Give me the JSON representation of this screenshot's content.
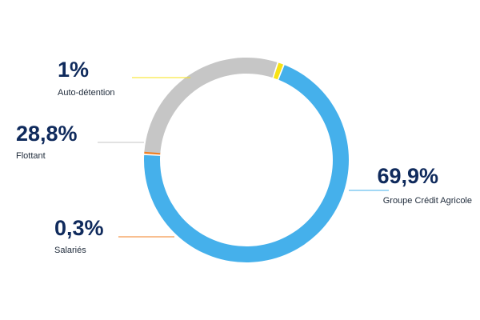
{
  "chart_data": {
    "type": "pie",
    "donut": true,
    "title": "",
    "slices": [
      {
        "label": "Groupe Crédit Agricole",
        "value": 69.9,
        "value_label": "69,9%",
        "color": "#45b0eb"
      },
      {
        "label": "Salariés",
        "value": 0.3,
        "value_label": "0,3%",
        "color": "#f07f22"
      },
      {
        "label": "Flottant",
        "value": 28.8,
        "value_label": "28,8%",
        "color": "#c6c6c6"
      },
      {
        "label": "Auto-détention",
        "value": 1,
        "value_label": "1%",
        "color": "#f7e315"
      }
    ]
  },
  "colors": {
    "value_text": "#0f2a5c",
    "label_text": "#1e2a3a"
  }
}
